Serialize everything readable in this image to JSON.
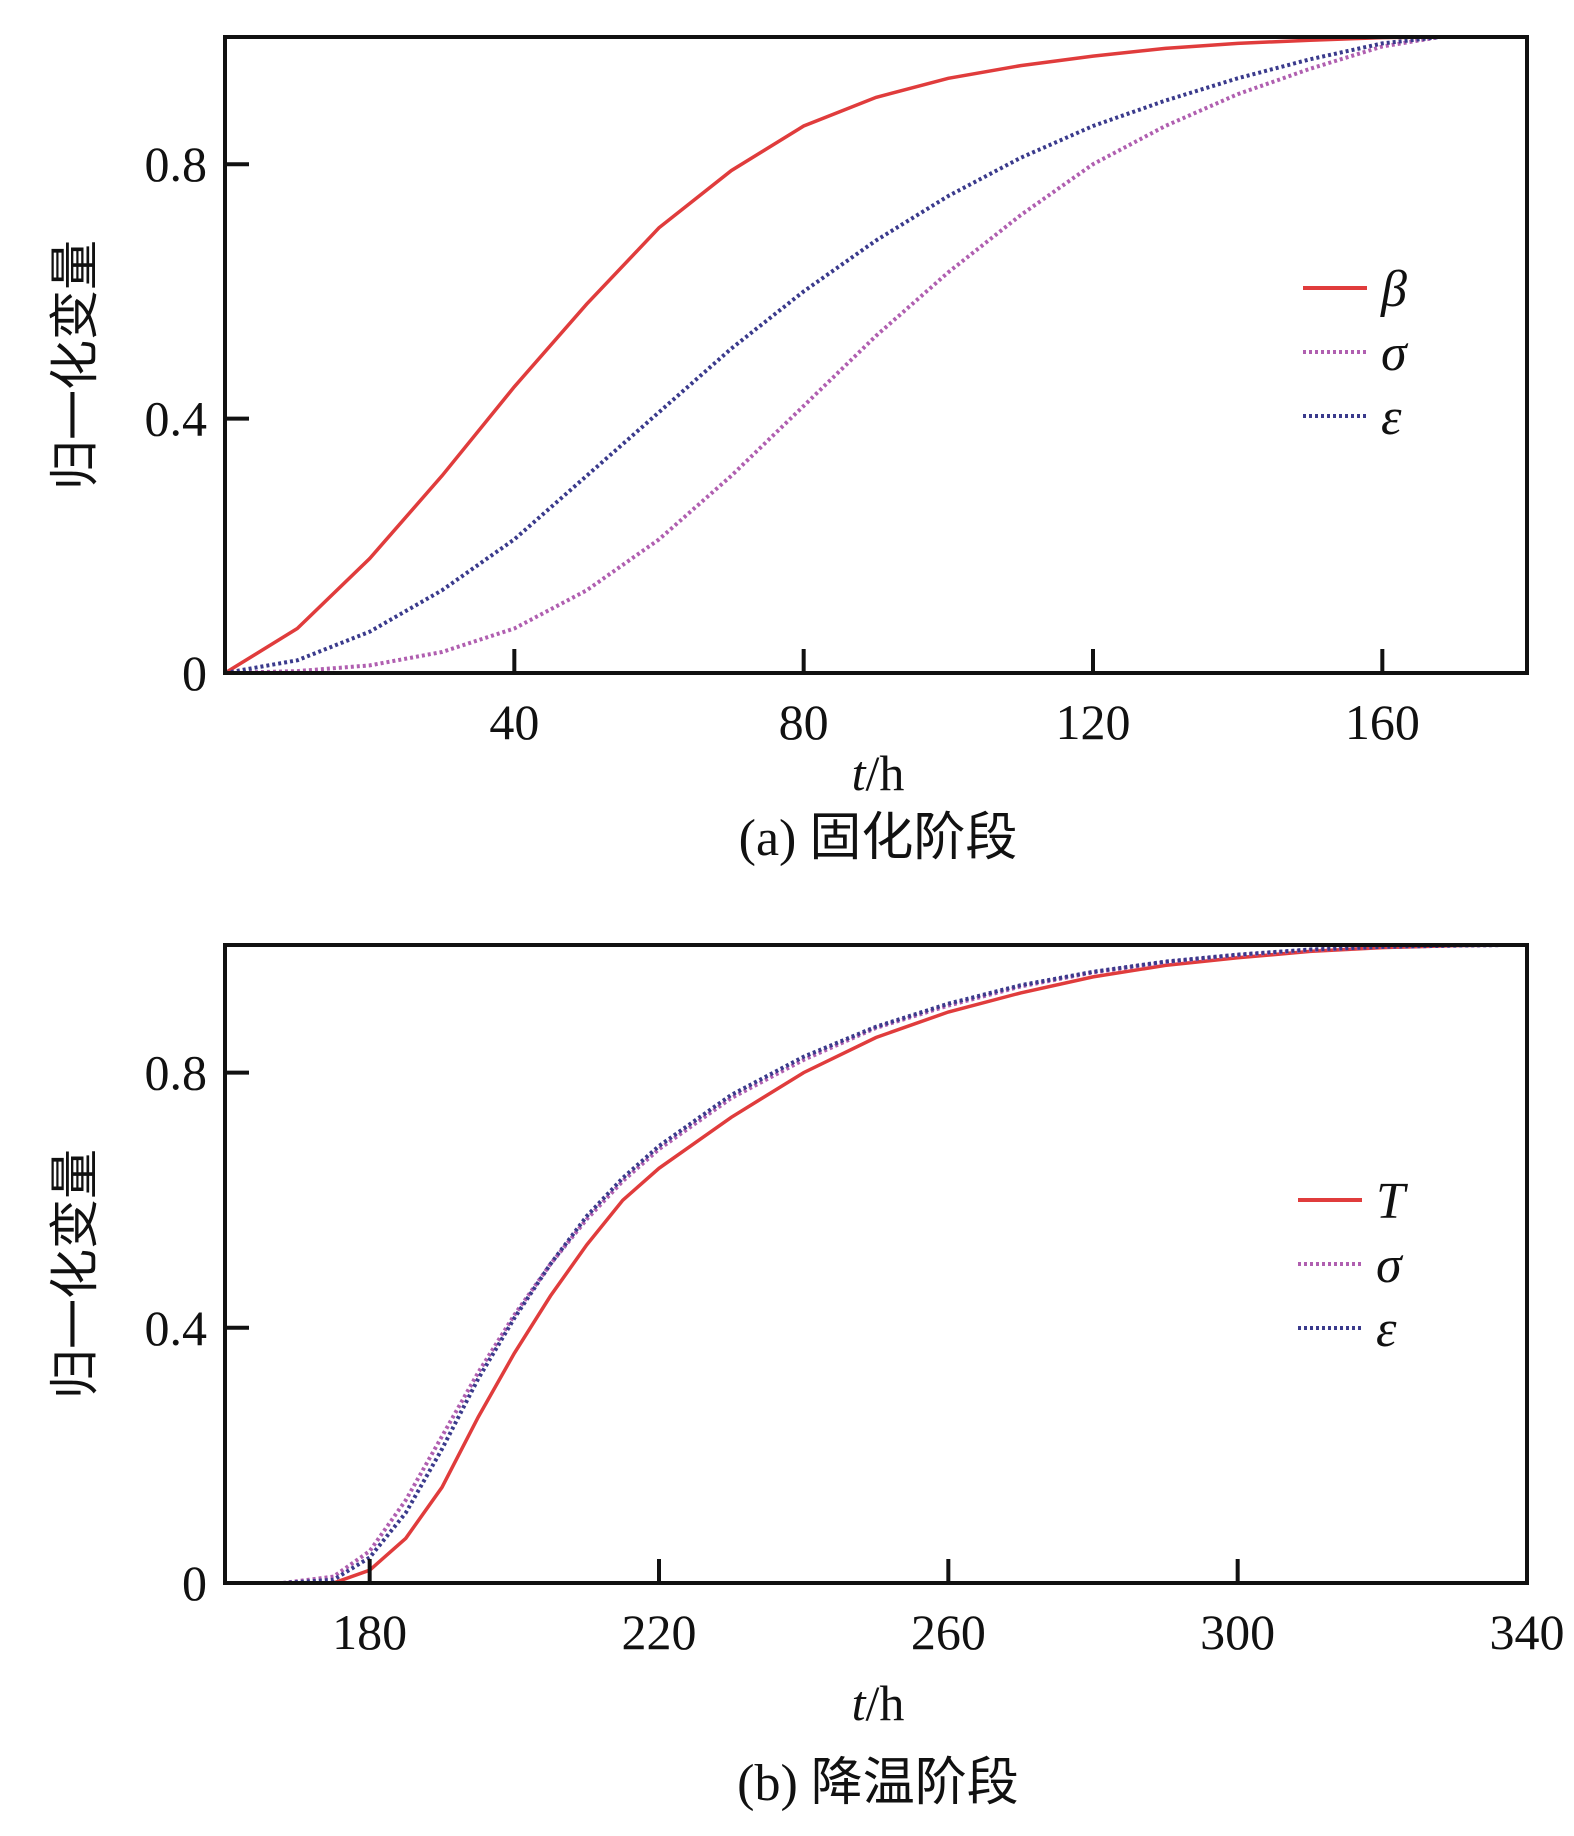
{
  "chart_data": [
    {
      "type": "line",
      "caption": "(a) 固化阶段",
      "xlabel_italic": "t",
      "xlabel_rest": "/h",
      "ylabel": "归一化变量",
      "xlim": [
        0,
        180
      ],
      "ylim": [
        0,
        1.0
      ],
      "xticks": [
        40,
        80,
        120,
        160
      ],
      "yticks": [
        0,
        0.4,
        0.8
      ],
      "ytick_labels": [
        "0",
        "0.4",
        "0.8"
      ],
      "legend_position": "right",
      "series": [
        {
          "name": "β",
          "color": "#e03c3c",
          "dash": "solid",
          "x": [
            0,
            10,
            20,
            30,
            40,
            50,
            60,
            70,
            80,
            90,
            100,
            110,
            120,
            130,
            140,
            150,
            160,
            168
          ],
          "y": [
            0,
            0.07,
            0.18,
            0.31,
            0.45,
            0.58,
            0.7,
            0.79,
            0.86,
            0.905,
            0.935,
            0.955,
            0.97,
            0.982,
            0.99,
            0.995,
            0.999,
            1.0
          ]
        },
        {
          "name": "σ",
          "color": "#b05fb0",
          "dash": "dotted",
          "x": [
            0,
            10,
            20,
            30,
            40,
            50,
            60,
            70,
            80,
            90,
            100,
            110,
            120,
            130,
            140,
            150,
            160,
            168
          ],
          "y": [
            0,
            0.003,
            0.012,
            0.033,
            0.07,
            0.13,
            0.21,
            0.31,
            0.42,
            0.53,
            0.63,
            0.72,
            0.8,
            0.86,
            0.91,
            0.95,
            0.985,
            1.0
          ]
        },
        {
          "name": "ε",
          "color": "#3a3a8c",
          "dash": "dotted",
          "x": [
            0,
            10,
            20,
            30,
            40,
            50,
            60,
            70,
            80,
            90,
            100,
            110,
            120,
            130,
            140,
            150,
            160,
            168
          ],
          "y": [
            0,
            0.02,
            0.065,
            0.13,
            0.21,
            0.31,
            0.41,
            0.51,
            0.6,
            0.68,
            0.75,
            0.81,
            0.86,
            0.9,
            0.935,
            0.965,
            0.99,
            1.0
          ]
        }
      ]
    },
    {
      "type": "line",
      "caption": "(b) 降温阶段",
      "xlabel_italic": "t",
      "xlabel_rest": "/h",
      "ylabel": "归一化变量",
      "xlim": [
        160,
        340
      ],
      "ylim": [
        0,
        1.0
      ],
      "xticks": [
        180,
        220,
        260,
        300,
        340
      ],
      "yticks": [
        0,
        0.4,
        0.8
      ],
      "ytick_labels": [
        "0",
        "0.4",
        "0.8"
      ],
      "legend_position": "right",
      "series": [
        {
          "name": "T",
          "color": "#e03c3c",
          "dash": "solid",
          "x": [
            168,
            175,
            180,
            185,
            190,
            195,
            200,
            205,
            210,
            215,
            220,
            230,
            240,
            250,
            260,
            270,
            280,
            290,
            300,
            310,
            320,
            330,
            337
          ],
          "y": [
            0,
            0.0,
            0.02,
            0.07,
            0.15,
            0.26,
            0.36,
            0.45,
            0.53,
            0.6,
            0.65,
            0.73,
            0.8,
            0.855,
            0.895,
            0.925,
            0.95,
            0.968,
            0.98,
            0.99,
            0.996,
            0.999,
            1.0
          ]
        },
        {
          "name": "σ",
          "color": "#b05fb0",
          "dash": "dotted",
          "x": [
            168,
            175,
            180,
            185,
            190,
            195,
            200,
            205,
            210,
            215,
            220,
            230,
            240,
            250,
            260,
            270,
            280,
            290,
            300,
            310,
            320,
            330,
            337
          ],
          "y": [
            0,
            0.01,
            0.05,
            0.13,
            0.23,
            0.33,
            0.42,
            0.5,
            0.57,
            0.63,
            0.68,
            0.76,
            0.82,
            0.87,
            0.905,
            0.935,
            0.957,
            0.973,
            0.984,
            0.992,
            0.997,
            0.999,
            1.0
          ]
        },
        {
          "name": "ε",
          "color": "#3a3a8c",
          "dash": "dotted",
          "x": [
            168,
            175,
            180,
            185,
            190,
            195,
            200,
            205,
            210,
            215,
            220,
            230,
            240,
            250,
            260,
            270,
            280,
            290,
            300,
            310,
            320,
            330,
            337
          ],
          "y": [
            0,
            0.005,
            0.04,
            0.11,
            0.21,
            0.32,
            0.415,
            0.5,
            0.575,
            0.635,
            0.685,
            0.765,
            0.825,
            0.872,
            0.908,
            0.937,
            0.958,
            0.974,
            0.985,
            0.993,
            0.997,
            0.999,
            1.0
          ]
        }
      ]
    }
  ]
}
